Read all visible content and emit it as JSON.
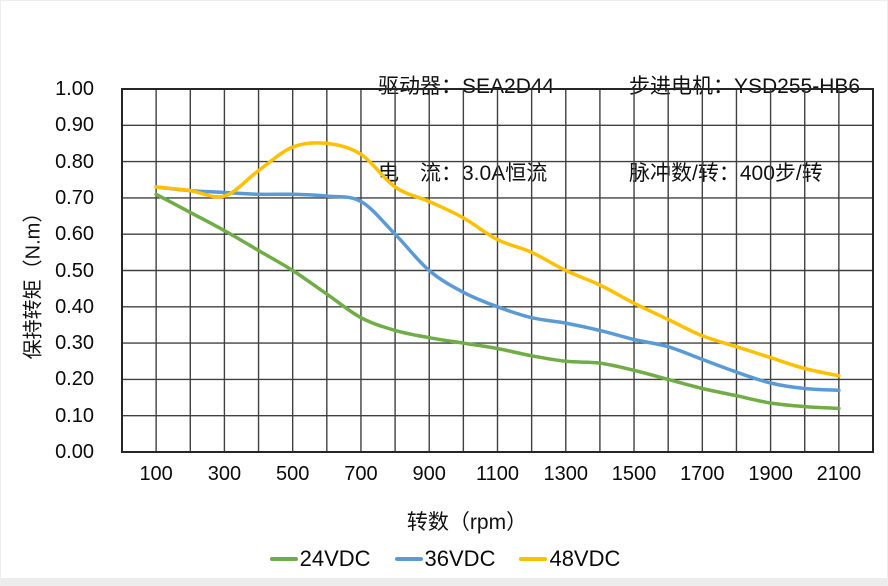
{
  "header": {
    "driver_line": "驱动器：SEA2D44",
    "current_line": "电　流：3.0A恒流",
    "motor_line": "步进电机：YSD255-HB6",
    "pulses_line": "脉冲数/转：400步/转"
  },
  "chart_data": {
    "type": "line",
    "title": "",
    "xlabel": "转数（rpm）",
    "ylabel": "保持转矩（N.m）",
    "grid": true,
    "legend_position": "bottom",
    "x_axis": {
      "min": 0,
      "max": 2200,
      "gridline_step": 100,
      "tick_labels": [
        "100",
        "300",
        "500",
        "700",
        "900",
        "1100",
        "1300",
        "1500",
        "1700",
        "1900",
        "2100"
      ],
      "tick_values": [
        100,
        300,
        500,
        700,
        900,
        1100,
        1300,
        1500,
        1700,
        1900,
        2100
      ]
    },
    "y_axis": {
      "min": 0,
      "max": 1.0,
      "gridline_step": 0.1,
      "tick_labels": [
        "1.00",
        "0.90",
        "0.80",
        "0.70",
        "0.60",
        "0.50",
        "0.40",
        "0.30",
        "0.20",
        "0.10",
        "0.00"
      ],
      "tick_values": [
        1.0,
        0.9,
        0.8,
        0.7,
        0.6,
        0.5,
        0.4,
        0.3,
        0.2,
        0.1,
        0.0
      ]
    },
    "x": [
      100,
      200,
      300,
      400,
      500,
      600,
      700,
      800,
      900,
      1000,
      1100,
      1200,
      1300,
      1400,
      1500,
      1600,
      1700,
      1800,
      1900,
      2000,
      2100
    ],
    "series": [
      {
        "name": "24VDC",
        "color": "#70AD47",
        "values": [
          0.71,
          0.66,
          0.61,
          0.555,
          0.5,
          0.435,
          0.37,
          0.335,
          0.315,
          0.3,
          0.285,
          0.265,
          0.25,
          0.245,
          0.225,
          0.2,
          0.175,
          0.155,
          0.135,
          0.125,
          0.12
        ]
      },
      {
        "name": "36VDC",
        "color": "#5B9BD5",
        "values": [
          0.73,
          0.72,
          0.715,
          0.71,
          0.71,
          0.705,
          0.69,
          0.6,
          0.5,
          0.44,
          0.4,
          0.37,
          0.355,
          0.335,
          0.31,
          0.29,
          0.255,
          0.22,
          0.19,
          0.175,
          0.17
        ]
      },
      {
        "name": "48VDC",
        "color": "#FFC000",
        "values": [
          0.73,
          0.72,
          0.705,
          0.775,
          0.84,
          0.85,
          0.82,
          0.73,
          0.69,
          0.645,
          0.585,
          0.55,
          0.5,
          0.46,
          0.41,
          0.365,
          0.32,
          0.29,
          0.26,
          0.23,
          0.21
        ]
      }
    ],
    "gridline_color": "#404040",
    "frame_color": "#262626"
  }
}
